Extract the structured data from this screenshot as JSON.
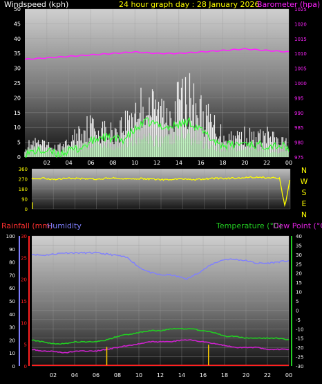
{
  "colors": {
    "wind": "#ffffff",
    "gust_fill": "#ffffff",
    "avg_wind": "#33ff33",
    "barometer": "#ff22ff",
    "direction": "#ffff00",
    "rainfall": "#ff2020",
    "rain_label": "#ff3030",
    "humidity": "#8080ff",
    "temperature": "#22cc22",
    "dewpoint": "#cc22cc",
    "rain_bars": "#ffcc00",
    "axis_text": "#ffffff",
    "title": "#ffff00"
  },
  "chart_data": [
    {
      "type": "line",
      "id": "wind-baro",
      "title": "24 hour graph day : 28 January 2026",
      "ylabel_left": "Windspeed (kph)",
      "ylabel_right": "Barometer (hpa)",
      "x_ticks": [
        "02",
        "04",
        "06",
        "08",
        "10",
        "12",
        "14",
        "16",
        "18",
        "20",
        "22",
        "00"
      ],
      "y_left_ticks": [
        "0",
        "5",
        "10",
        "15",
        "20",
        "25",
        "30",
        "35",
        "40",
        "45",
        "50"
      ],
      "y_left_range": [
        0,
        50
      ],
      "y_right_ticks": [
        "975",
        "980",
        "985",
        "990",
        "995",
        "1000",
        "1005",
        "1010",
        "1015",
        "1020",
        "1025"
      ],
      "y_right_range": [
        975,
        1025
      ],
      "x_range": [
        0,
        24
      ],
      "grid": true,
      "series": [
        {
          "kind": "gust",
          "x": [
            0,
            1,
            2,
            3,
            4,
            5,
            6,
            7,
            8,
            9,
            10,
            11,
            12,
            13,
            14,
            15,
            16,
            17,
            18,
            19,
            20,
            21,
            22,
            23,
            24
          ],
          "values": [
            5,
            6,
            5,
            4,
            6,
            12,
            14,
            12,
            11,
            15,
            21,
            24,
            21,
            20,
            25,
            26,
            20,
            15,
            10,
            9,
            10,
            8,
            10,
            7,
            6
          ]
        },
        {
          "kind": "speed",
          "x": [
            0,
            1,
            2,
            3,
            4,
            5,
            6,
            7,
            8,
            9,
            10,
            11,
            12,
            13,
            14,
            15,
            16,
            17,
            18,
            19,
            20,
            21,
            22,
            23,
            24
          ],
          "values": [
            2,
            3,
            2,
            2,
            3,
            4,
            4,
            5,
            4,
            5,
            7,
            6,
            7,
            6,
            8,
            8,
            6,
            4,
            3,
            3,
            3,
            3,
            3,
            2,
            2
          ]
        },
        {
          "kind": "average",
          "x": [
            0,
            1,
            2,
            3,
            4,
            5,
            6,
            7,
            8,
            9,
            10,
            11,
            12,
            13,
            14,
            15,
            16,
            17,
            18,
            19,
            20,
            21,
            22,
            23,
            24
          ],
          "values": [
            1,
            2,
            2,
            1,
            2,
            3,
            5,
            7,
            6,
            6,
            9,
            12,
            11,
            10,
            11,
            12,
            9,
            6,
            4,
            4,
            5,
            4,
            4,
            4,
            3
          ]
        },
        {
          "kind": "barometer",
          "x": [
            0,
            2,
            4,
            6,
            8,
            10,
            12,
            14,
            16,
            18,
            20,
            22,
            24
          ],
          "values": [
            1008,
            1008.5,
            1009,
            1009.5,
            1010,
            1010.5,
            1010,
            1010,
            1010.5,
            1011,
            1011.5,
            1011,
            1010.5
          ]
        }
      ]
    },
    {
      "type": "line",
      "id": "wind-direction",
      "y_left_ticks": [
        "0",
        "90",
        "180",
        "270",
        "360"
      ],
      "y_range": [
        0,
        360
      ],
      "compass_labels": [
        "N",
        "W",
        "S",
        "E",
        "N"
      ],
      "x_range": [
        0,
        24
      ],
      "series": [
        {
          "kind": "direction",
          "x": [
            0,
            1,
            2,
            3,
            4,
            5,
            6,
            7,
            8,
            9,
            10,
            11,
            12,
            13,
            14,
            15,
            16,
            17,
            18,
            19,
            20,
            21,
            22,
            23,
            23.5,
            24
          ],
          "values": [
            270,
            275,
            265,
            272,
            275,
            270,
            268,
            275,
            278,
            270,
            272,
            268,
            262,
            266,
            270,
            262,
            268,
            275,
            272,
            278,
            283,
            286,
            280,
            276,
            20,
            276
          ]
        }
      ]
    },
    {
      "type": "line",
      "id": "rain-hum-temp",
      "legend_left": [
        "Rainfall (mm)",
        "Humidity"
      ],
      "legend_right": [
        "Temperature (°C)",
        "Dew Point (°C)"
      ],
      "x_ticks": [
        "02",
        "04",
        "06",
        "08",
        "10",
        "12",
        "14",
        "16",
        "18",
        "20",
        "22",
        "00"
      ],
      "humidity_ticks": [
        "0",
        "10",
        "20",
        "30",
        "40",
        "50",
        "60",
        "70",
        "80",
        "90",
        "100"
      ],
      "humidity_range": [
        0,
        100
      ],
      "rain_ticks": [
        "0",
        "5",
        "10",
        "15",
        "20",
        "25",
        "30"
      ],
      "rain_range": [
        0,
        30
      ],
      "temp_ticks": [
        "-30",
        "-25",
        "-20",
        "-15",
        "-10",
        "-5",
        "0",
        "5",
        "10",
        "15",
        "20",
        "25",
        "30",
        "35",
        "40"
      ],
      "temp_range": [
        -30,
        40
      ],
      "x_range": [
        0,
        24
      ],
      "series": [
        {
          "kind": "humidity",
          "x": [
            0,
            1,
            2,
            3,
            4,
            5,
            6,
            7,
            8,
            9,
            10,
            11,
            12,
            13,
            14,
            14.5,
            15,
            16,
            17,
            18,
            19,
            20,
            21,
            22,
            23,
            24
          ],
          "values": [
            86,
            85,
            86,
            87,
            87,
            87,
            87,
            86,
            85,
            83,
            76,
            72,
            70,
            70,
            68,
            67,
            69,
            74,
            79,
            82,
            82,
            81,
            79,
            79,
            80,
            81
          ]
        },
        {
          "kind": "temperature",
          "x": [
            0,
            1,
            2,
            3,
            4,
            5,
            6,
            7,
            8,
            9,
            10,
            11,
            12,
            13,
            14,
            15,
            16,
            17,
            18,
            19,
            20,
            21,
            22,
            23,
            24
          ],
          "values": [
            -16,
            -17,
            -18,
            -18,
            -17,
            -17,
            -17,
            -16,
            -14,
            -13,
            -12,
            -11,
            -11,
            -10,
            -10,
            -10,
            -11,
            -12,
            -14,
            -14,
            -15,
            -15,
            -15,
            -15,
            -16
          ]
        },
        {
          "kind": "dewpoint",
          "x": [
            0,
            1,
            2,
            3,
            4,
            5,
            6,
            7,
            8,
            9,
            10,
            11,
            12,
            13,
            14,
            15,
            16,
            17,
            18,
            19,
            20,
            21,
            22,
            23,
            24
          ],
          "values": [
            -21,
            -22,
            -22,
            -23,
            -22,
            -22,
            -22,
            -21,
            -20,
            -19,
            -18,
            -17,
            -17,
            -17,
            -16,
            -16,
            -17,
            -18,
            -19,
            -20,
            -20,
            -20,
            -21,
            -21,
            -21
          ]
        },
        {
          "kind": "rain_events",
          "x": [
            7,
            16.5
          ],
          "values": [
            2.5,
            3
          ]
        },
        {
          "kind": "rainfall",
          "x": [
            0,
            24
          ],
          "values": [
            0,
            0
          ]
        }
      ]
    }
  ]
}
